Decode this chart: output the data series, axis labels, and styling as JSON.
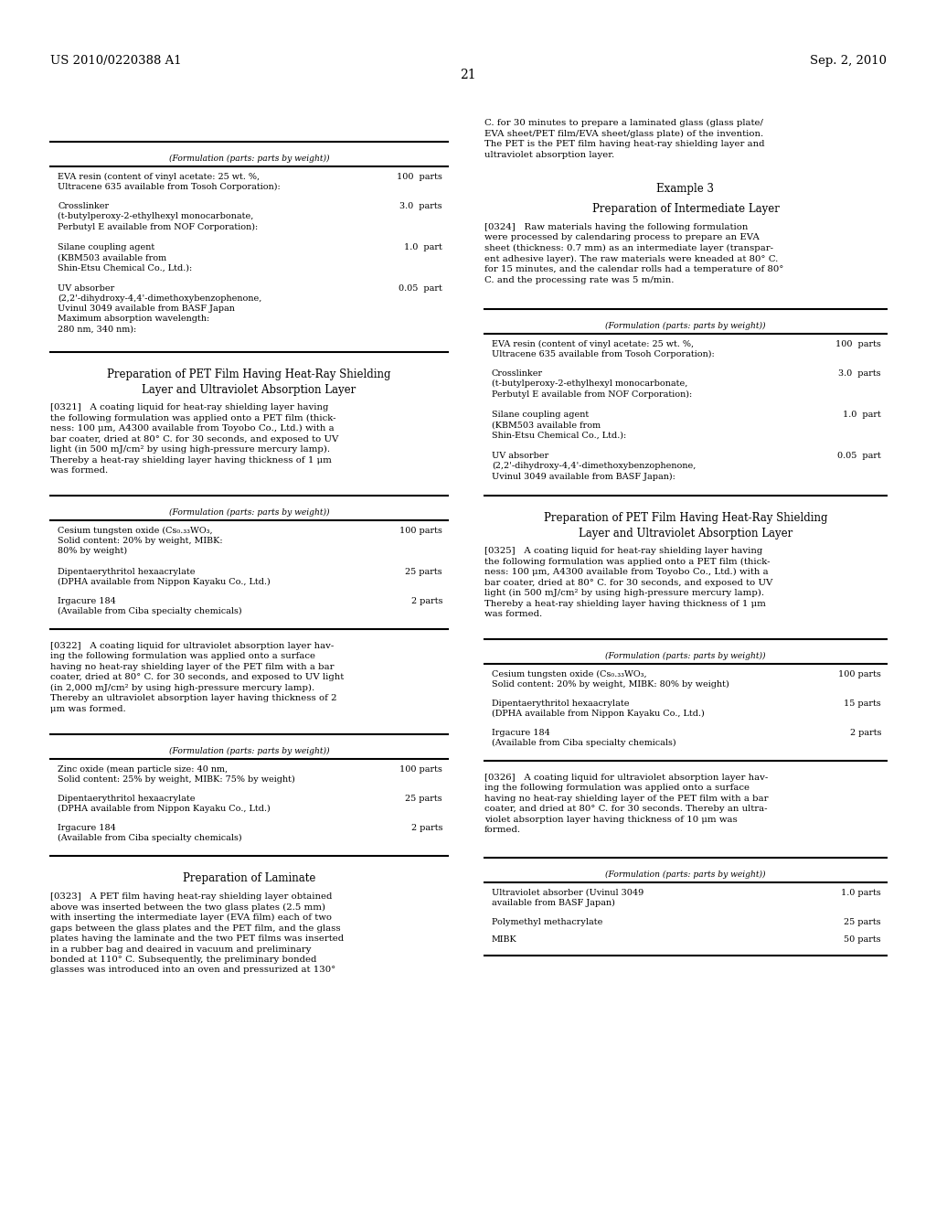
{
  "background_color": "#ffffff",
  "page_number": "21",
  "header_left": "US 2010/0220388 A1",
  "header_right": "Sep. 2, 2010"
}
